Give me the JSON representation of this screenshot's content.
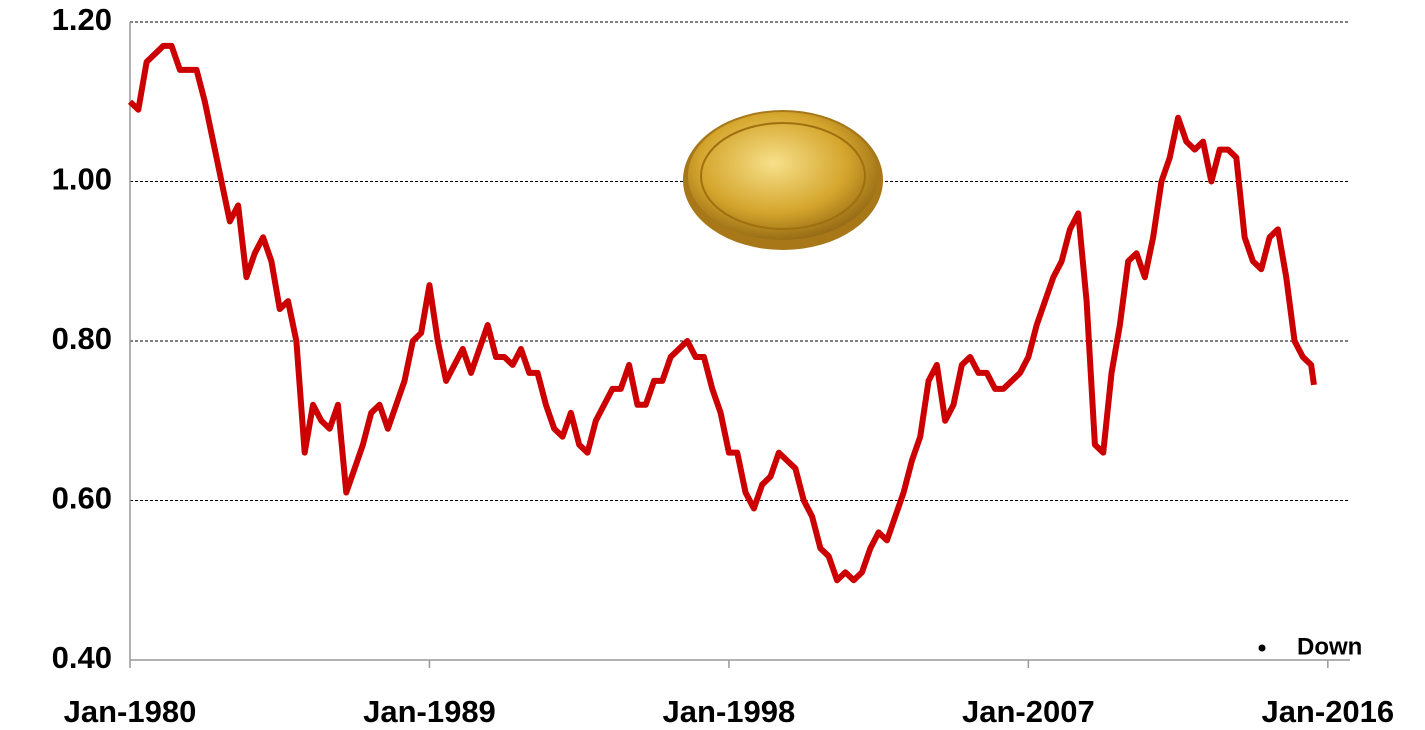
{
  "chart_data": {
    "type": "line",
    "annotation": "Down",
    "x": [
      "1980-01",
      "1980-04",
      "1980-07",
      "1980-10",
      "1981-01",
      "1981-04",
      "1981-07",
      "1981-10",
      "1982-01",
      "1982-04",
      "1982-07",
      "1982-10",
      "1983-01",
      "1983-04",
      "1983-07",
      "1983-10",
      "1984-01",
      "1984-04",
      "1984-07",
      "1984-10",
      "1985-01",
      "1985-04",
      "1985-07",
      "1985-10",
      "1986-01",
      "1986-04",
      "1986-07",
      "1986-10",
      "1987-01",
      "1987-04",
      "1987-07",
      "1987-10",
      "1988-01",
      "1988-04",
      "1988-07",
      "1988-10",
      "1989-01",
      "1989-04",
      "1989-07",
      "1989-10",
      "1990-01",
      "1990-04",
      "1990-07",
      "1990-10",
      "1991-01",
      "1991-04",
      "1991-07",
      "1991-10",
      "1992-01",
      "1992-04",
      "1992-07",
      "1992-10",
      "1993-01",
      "1993-04",
      "1993-07",
      "1993-10",
      "1994-01",
      "1994-04",
      "1994-07",
      "1994-10",
      "1995-01",
      "1995-04",
      "1995-07",
      "1995-10",
      "1996-01",
      "1996-04",
      "1996-07",
      "1996-10",
      "1997-01",
      "1997-04",
      "1997-07",
      "1997-10",
      "1998-01",
      "1998-04",
      "1998-07",
      "1998-10",
      "1999-01",
      "1999-04",
      "1999-07",
      "1999-10",
      "2000-01",
      "2000-04",
      "2000-07",
      "2000-10",
      "2001-01",
      "2001-04",
      "2001-07",
      "2001-10",
      "2002-01",
      "2002-04",
      "2002-07",
      "2002-10",
      "2003-01",
      "2003-04",
      "2003-07",
      "2003-10",
      "2004-01",
      "2004-04",
      "2004-07",
      "2004-10",
      "2005-01",
      "2005-04",
      "2005-07",
      "2005-10",
      "2006-01",
      "2006-04",
      "2006-07",
      "2006-10",
      "2007-01",
      "2007-04",
      "2007-07",
      "2007-10",
      "2008-01",
      "2008-04",
      "2008-07",
      "2008-10",
      "2009-01",
      "2009-04",
      "2009-07",
      "2009-10",
      "2010-01",
      "2010-04",
      "2010-07",
      "2010-10",
      "2011-01",
      "2011-04",
      "2011-07",
      "2011-10",
      "2012-01",
      "2012-04",
      "2012-07",
      "2012-10",
      "2013-01",
      "2013-04",
      "2013-07",
      "2013-10",
      "2014-01",
      "2014-04",
      "2014-07",
      "2014-10",
      "2015-01",
      "2015-04",
      "2015-07",
      "2015-08"
    ],
    "series": [
      {
        "color": "#cc0000",
        "values": [
          1.1,
          1.09,
          1.15,
          1.16,
          1.17,
          1.17,
          1.14,
          1.14,
          1.14,
          1.1,
          1.05,
          1.0,
          0.95,
          0.97,
          0.88,
          0.91,
          0.93,
          0.9,
          0.84,
          0.85,
          0.8,
          0.66,
          0.72,
          0.7,
          0.69,
          0.72,
          0.61,
          0.64,
          0.67,
          0.71,
          0.72,
          0.69,
          0.72,
          0.75,
          0.8,
          0.81,
          0.87,
          0.8,
          0.75,
          0.77,
          0.79,
          0.76,
          0.79,
          0.82,
          0.78,
          0.78,
          0.77,
          0.79,
          0.76,
          0.76,
          0.72,
          0.69,
          0.68,
          0.71,
          0.67,
          0.66,
          0.7,
          0.72,
          0.74,
          0.74,
          0.77,
          0.72,
          0.72,
          0.75,
          0.75,
          0.78,
          0.79,
          0.8,
          0.78,
          0.78,
          0.74,
          0.71,
          0.66,
          0.66,
          0.61,
          0.59,
          0.62,
          0.63,
          0.66,
          0.65,
          0.64,
          0.6,
          0.58,
          0.54,
          0.53,
          0.5,
          0.51,
          0.5,
          0.51,
          0.54,
          0.56,
          0.55,
          0.58,
          0.61,
          0.65,
          0.68,
          0.75,
          0.77,
          0.7,
          0.72,
          0.77,
          0.78,
          0.76,
          0.76,
          0.74,
          0.74,
          0.75,
          0.76,
          0.78,
          0.82,
          0.85,
          0.88,
          0.9,
          0.94,
          0.96,
          0.85,
          0.67,
          0.66,
          0.76,
          0.82,
          0.9,
          0.91,
          0.88,
          0.93,
          1.0,
          1.03,
          1.08,
          1.05,
          1.04,
          1.05,
          1.0,
          1.04,
          1.04,
          1.03,
          0.93,
          0.9,
          0.89,
          0.93,
          0.94,
          0.88,
          0.8,
          0.78,
          0.77,
          0.745
        ]
      }
    ],
    "xlim": [
      "1980-01",
      "2016-09"
    ],
    "xticks": [
      {
        "value": "1980-01",
        "label": "Jan-1980"
      },
      {
        "value": "1989-01",
        "label": "Jan-1989"
      },
      {
        "value": "1998-01",
        "label": "Jan-1998"
      },
      {
        "value": "2007-01",
        "label": "Jan-2007"
      },
      {
        "value": "2016-01",
        "label": "Jan-2016"
      }
    ],
    "ylim": [
      0.4,
      1.2
    ],
    "yticks": [
      {
        "value": 0.4,
        "label": "0.40"
      },
      {
        "value": 0.6,
        "label": "0.60"
      },
      {
        "value": 0.8,
        "label": "0.80"
      },
      {
        "value": 1.0,
        "label": "1.00"
      },
      {
        "value": 1.2,
        "label": "1.20"
      }
    ],
    "grid": true
  }
}
